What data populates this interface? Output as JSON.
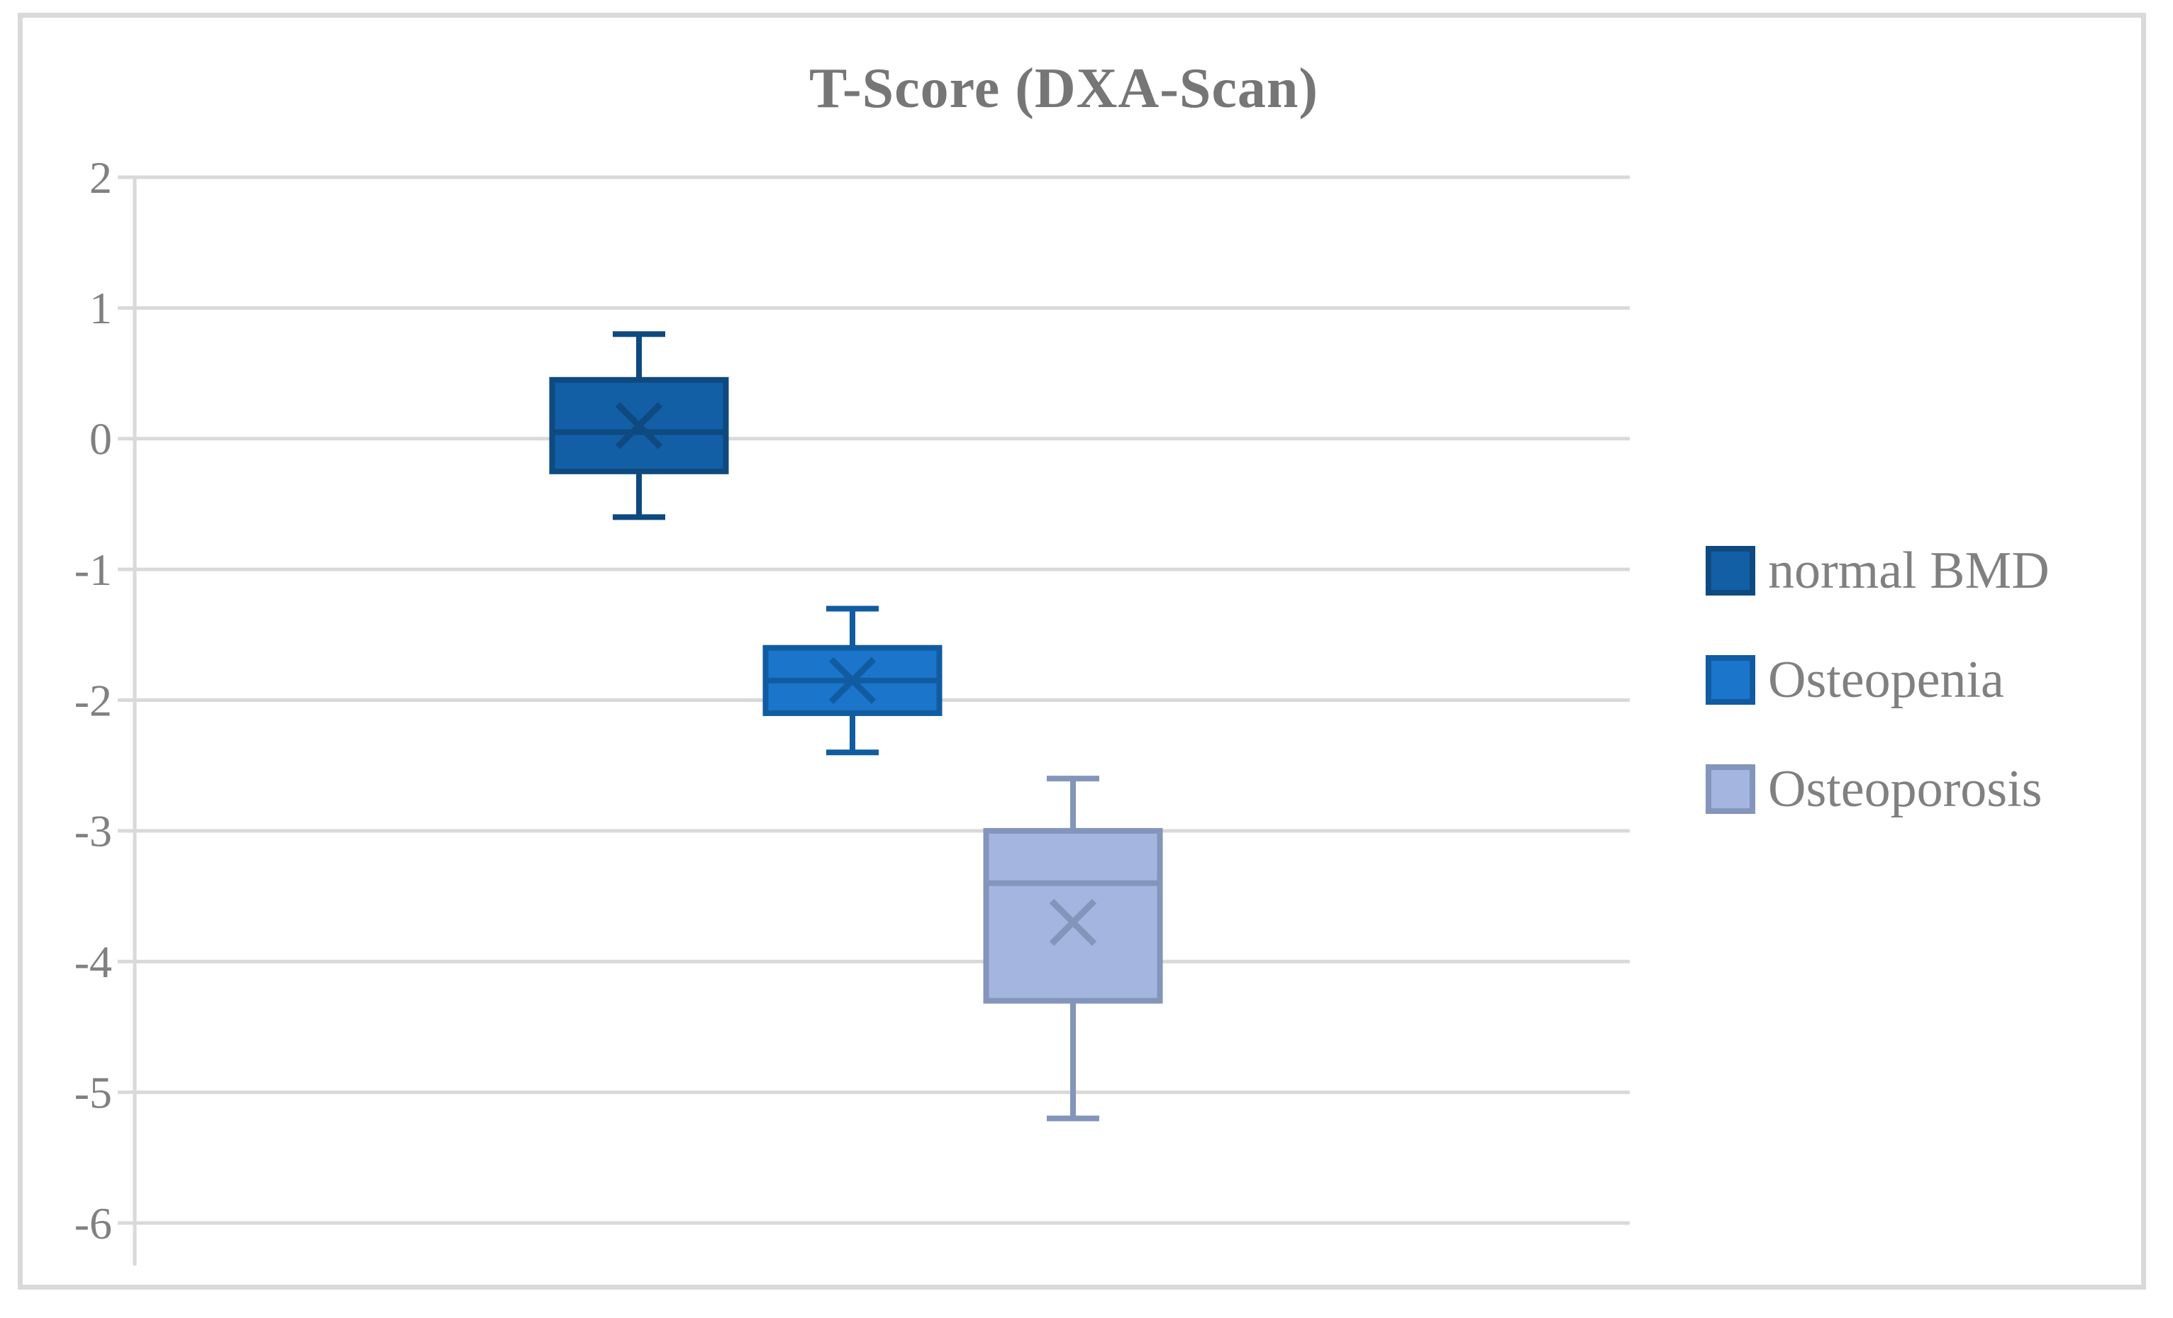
{
  "title": "T-Score (DXA-Scan)",
  "chart_data": {
    "type": "boxplot",
    "title": "T-Score (DXA-Scan)",
    "ylabel": "",
    "xlabel": "",
    "ylim": [
      -6,
      2
    ],
    "y_ticks": [
      2,
      1,
      0,
      -1,
      -2,
      -3,
      -4,
      -5,
      -6
    ],
    "grid": true,
    "legend_position": "right",
    "series": [
      {
        "name": "normal BMD",
        "min": -0.6,
        "q1": -0.25,
        "median": 0.05,
        "mean": 0.1,
        "q3": 0.45,
        "max": 0.8,
        "fill": "#135FA6",
        "stroke": "#0E4A80"
      },
      {
        "name": "Osteopenia",
        "min": -2.4,
        "q1": -2.1,
        "median": -1.85,
        "mean": -1.85,
        "q3": -1.6,
        "max": -1.3,
        "fill": "#1B76CB",
        "stroke": "#115CA1"
      },
      {
        "name": "Osteoporosis",
        "min": -5.2,
        "q1": -4.3,
        "median": -3.4,
        "mean": -3.7,
        "q3": -3.0,
        "max": -2.6,
        "fill": "#A4B6DF",
        "stroke": "#8395BA"
      }
    ],
    "colors": {
      "gridline": "#D9D9D9",
      "frame_border": "#D9D9D9",
      "axis_text": "#808080",
      "title_text": "#767676"
    }
  }
}
